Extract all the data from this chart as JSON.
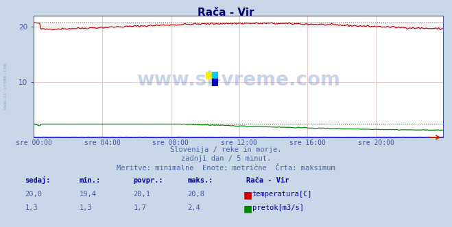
{
  "title": "Rača - Vir",
  "title_color": "#000080",
  "bg_color": "#c8d8e8",
  "plot_bg_color": "#ffffff",
  "xlabel_ticks": [
    "sre 00:00",
    "sre 04:00",
    "sre 08:00",
    "sre 12:00",
    "sre 16:00",
    "sre 20:00"
  ],
  "tick_positions": [
    0,
    48,
    96,
    144,
    192,
    240
  ],
  "total_points": 288,
  "temp_min": 19.4,
  "temp_max": 20.8,
  "temp_avg": 20.1,
  "temp_now": 20.0,
  "flow_min": 1.3,
  "flow_max": 2.4,
  "flow_avg": 1.7,
  "flow_now": 1.3,
  "ylim": [
    0,
    22.0
  ],
  "yticks": [
    10,
    20
  ],
  "grid_color": "#e8c8c8",
  "temp_line_color": "#cc0000",
  "flow_line_color": "#008800",
  "height_line_color": "#0000cc",
  "axis_color": "#4455aa",
  "watermark_text": "www.si-vreme.com",
  "watermark_color": "#4477bb",
  "watermark_alpha": 0.3,
  "subtitle1": "Slovenija / reke in morje.",
  "subtitle2": "zadnji dan / 5 minut.",
  "subtitle3": "Meritve: minimalne  Enote: metrične  Črta: maksimum",
  "subtitle_color": "#4466aa",
  "table_header_color": "#0000aa",
  "table_value_color": "#4455aa",
  "table_label_color": "#0000aa",
  "left_label": "www.si-vreme.com",
  "left_label_color": "#88aacc",
  "logo_colors": [
    "#ffee00",
    "#00ccff",
    "#0000cc"
  ],
  "row1_vals": [
    "20,0",
    "19,4",
    "20,1",
    "20,8"
  ],
  "row2_vals": [
    "1,3",
    "1,3",
    "1,7",
    "2,4"
  ],
  "headers": [
    "sedaj:",
    "min.:",
    "povpr.:",
    "maks.:"
  ],
  "station_name": "Rača - Vir",
  "label1": "temperatura[C]",
  "label2": "pretok[m3/s]"
}
